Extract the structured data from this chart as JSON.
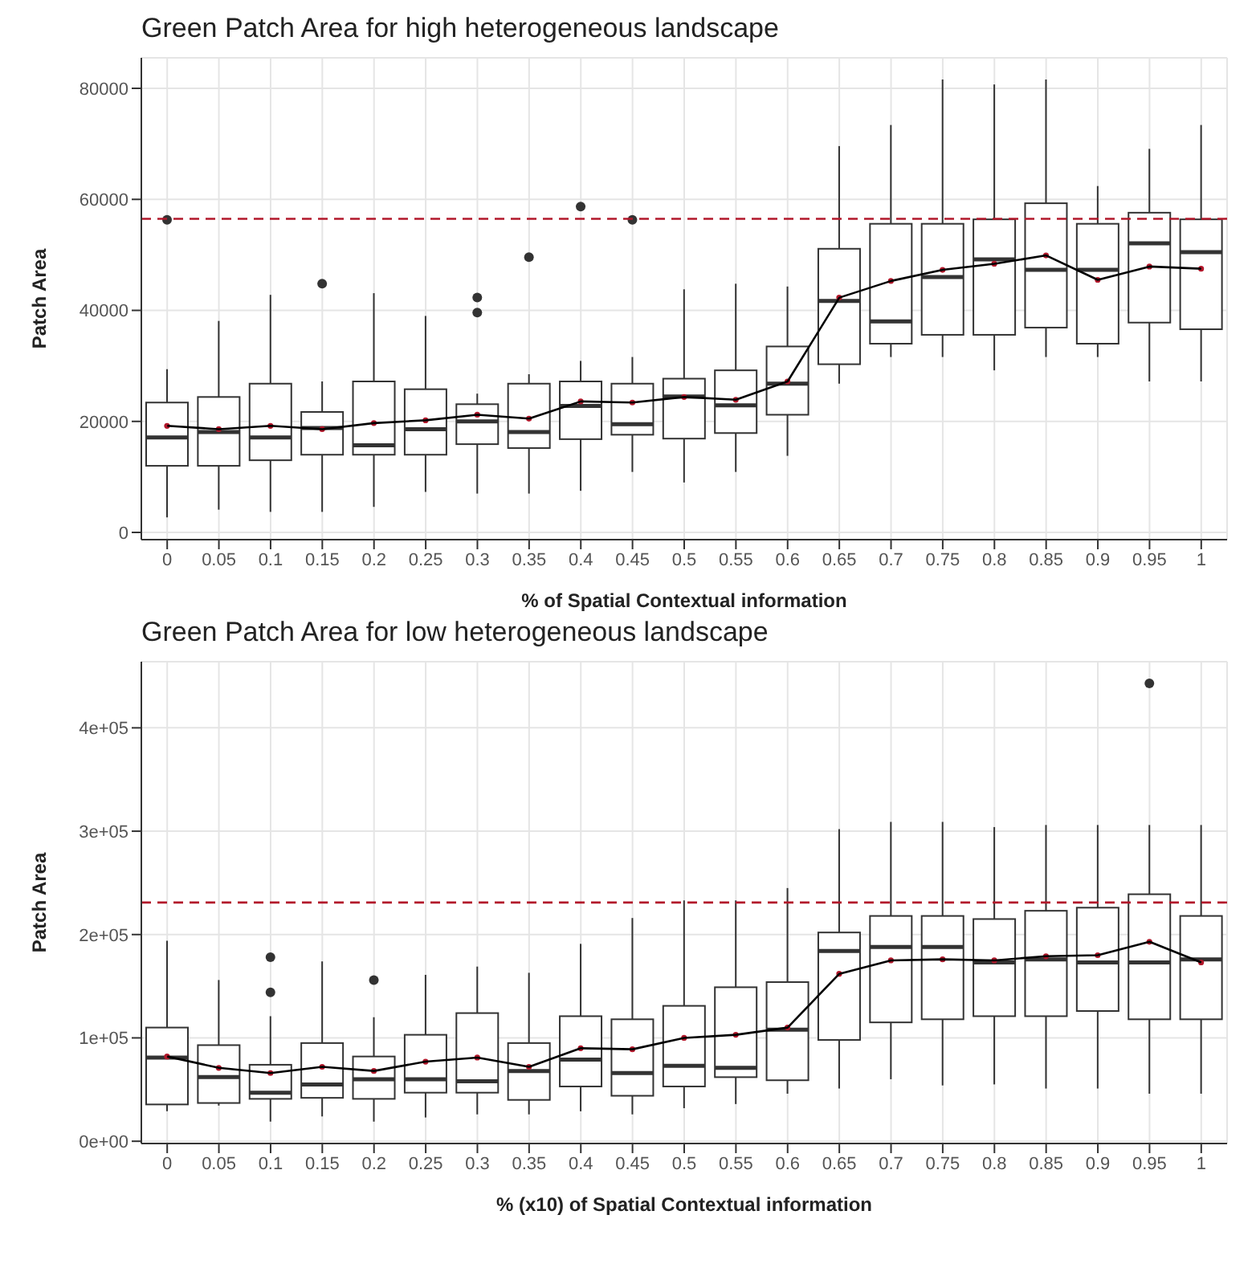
{
  "chart_data": [
    {
      "type": "box",
      "title": "Green Patch Area for high heterogeneous landscape",
      "xlabel": "% of Spatial Contextual information",
      "ylabel": "Patch Area",
      "categories": [
        "0",
        "0.05",
        "0.1",
        "0.15",
        "0.2",
        "0.25",
        "0.3",
        "0.35",
        "0.4",
        "0.45",
        "0.5",
        "0.55",
        "0.6",
        "0.65",
        "0.7",
        "0.75",
        "0.8",
        "0.85",
        "0.9",
        "0.95",
        "1"
      ],
      "ylim": [
        -1300,
        85500
      ],
      "yticks": [
        0,
        20000,
        40000,
        60000,
        80000
      ],
      "grid": true,
      "boxes": [
        {
          "low": 2700,
          "q1": 12000,
          "median": 17100,
          "q3": 23400,
          "high": 29400,
          "mean": 19200,
          "outliers": [
            56300
          ]
        },
        {
          "low": 4100,
          "q1": 12000,
          "median": 18100,
          "q3": 24400,
          "high": 38100,
          "mean": 18600
        },
        {
          "low": 3700,
          "q1": 13000,
          "median": 17100,
          "q3": 26800,
          "high": 42800,
          "mean": 19200
        },
        {
          "low": 3700,
          "q1": 14000,
          "median": 18800,
          "q3": 21700,
          "high": 27200,
          "mean": 18600,
          "outliers": [
            44800
          ]
        },
        {
          "low": 4600,
          "q1": 14000,
          "median": 15700,
          "q3": 27200,
          "high": 43100,
          "mean": 19700
        },
        {
          "low": 7300,
          "q1": 14000,
          "median": 18600,
          "q3": 25800,
          "high": 39000,
          "mean": 20200
        },
        {
          "low": 7000,
          "q1": 15900,
          "median": 20000,
          "q3": 23100,
          "high": 25000,
          "mean": 21200,
          "outliers": [
            42300,
            39600
          ]
        },
        {
          "low": 7000,
          "q1": 15200,
          "median": 18100,
          "q3": 26800,
          "high": 28500,
          "mean": 20500,
          "outliers": [
            49600
          ]
        },
        {
          "low": 7500,
          "q1": 16800,
          "median": 22800,
          "q3": 27200,
          "high": 30900,
          "mean": 23600,
          "outliers": [
            58700
          ]
        },
        {
          "low": 10900,
          "q1": 17600,
          "median": 19500,
          "q3": 26800,
          "high": 31600,
          "mean": 23400,
          "outliers": [
            56300
          ]
        },
        {
          "low": 9000,
          "q1": 16900,
          "median": 24500,
          "q3": 27700,
          "high": 43800,
          "mean": 24400
        },
        {
          "low": 10900,
          "q1": 17900,
          "median": 22900,
          "q3": 29200,
          "high": 44800,
          "mean": 23900
        },
        {
          "low": 13800,
          "q1": 21200,
          "median": 26800,
          "q3": 33500,
          "high": 44300,
          "mean": 27200
        },
        {
          "low": 26800,
          "q1": 30300,
          "median": 41700,
          "q3": 51100,
          "high": 69600,
          "mean": 42300
        },
        {
          "low": 31600,
          "q1": 34000,
          "median": 38000,
          "q3": 55600,
          "high": 73400,
          "mean": 45300
        },
        {
          "low": 31600,
          "q1": 35600,
          "median": 46000,
          "q3": 55600,
          "high": 81600,
          "mean": 47300
        },
        {
          "low": 29200,
          "q1": 35600,
          "median": 49200,
          "q3": 56400,
          "high": 80700,
          "mean": 48400
        },
        {
          "low": 31600,
          "q1": 36900,
          "median": 47300,
          "q3": 59300,
          "high": 81600,
          "mean": 49900
        },
        {
          "low": 31600,
          "q1": 34000,
          "median": 47300,
          "q3": 55600,
          "high": 62400,
          "mean": 45500
        },
        {
          "low": 27200,
          "q1": 37800,
          "median": 52100,
          "q3": 57600,
          "high": 69100,
          "mean": 47900
        },
        {
          "low": 27200,
          "q1": 36600,
          "median": 50500,
          "q3": 56400,
          "high": 73400,
          "mean": 47500
        }
      ],
      "series": [
        {
          "type": "line",
          "color": "#000000",
          "values": [
            19200,
            18600,
            19200,
            18600,
            19700,
            20200,
            21200,
            20500,
            23600,
            23400,
            24400,
            23900,
            27200,
            42300,
            45300,
            47300,
            48400,
            49900,
            45500,
            47900,
            47500
          ]
        }
      ],
      "marker": "none",
      "line_style": "solid",
      "ref_lines": [
        {
          "axis": "y",
          "value": 56500,
          "color": "#b2182b",
          "line_style": "dashed"
        }
      ]
    },
    {
      "type": "box",
      "title": "Green Patch Area for low heterogeneous landscape",
      "xlabel": "% (x10) of Spatial Contextual information",
      "ylabel": "Patch Area",
      "categories": [
        "0",
        "0.05",
        "0.1",
        "0.15",
        "0.2",
        "0.25",
        "0.3",
        "0.35",
        "0.4",
        "0.45",
        "0.5",
        "0.55",
        "0.6",
        "0.65",
        "0.7",
        "0.75",
        "0.8",
        "0.85",
        "0.9",
        "0.95",
        "1"
      ],
      "ylim": [
        -2200,
        464000
      ],
      "yticks": [
        {
          "value": 0,
          "label": "0e+00"
        },
        {
          "value": 100000,
          "label": "1e+05"
        },
        {
          "value": 200000,
          "label": "2e+05"
        },
        {
          "value": 300000,
          "label": "3e+05"
        },
        {
          "value": 400000,
          "label": "4e+05"
        }
      ],
      "grid": true,
      "boxes": [
        {
          "low": 29000,
          "q1": 35600,
          "median": 81000,
          "q3": 110000,
          "high": 194000,
          "mean": 82000
        },
        {
          "low": 34500,
          "q1": 37000,
          "median": 62000,
          "q3": 93000,
          "high": 156000,
          "mean": 71000
        },
        {
          "low": 19000,
          "q1": 41000,
          "median": 47000,
          "q3": 74000,
          "high": 121000,
          "mean": 66000,
          "outliers": [
            178000,
            144000
          ]
        },
        {
          "low": 24000,
          "q1": 42000,
          "median": 55000,
          "q3": 95000,
          "high": 174000,
          "mean": 72000
        },
        {
          "low": 19000,
          "q1": 41000,
          "median": 60000,
          "q3": 82000,
          "high": 120000,
          "mean": 68000,
          "outliers": [
            156000
          ]
        },
        {
          "low": 23000,
          "q1": 47000,
          "median": 60000,
          "q3": 103000,
          "high": 161000,
          "mean": 77000
        },
        {
          "low": 26000,
          "q1": 47000,
          "median": 58000,
          "q3": 124000,
          "high": 169000,
          "mean": 81000
        },
        {
          "low": 26000,
          "q1": 40000,
          "median": 68000,
          "q3": 95000,
          "high": 163000,
          "mean": 72000
        },
        {
          "low": 29000,
          "q1": 53000,
          "median": 79000,
          "q3": 121000,
          "high": 191000,
          "mean": 90000
        },
        {
          "low": 26000,
          "q1": 44000,
          "median": 66000,
          "q3": 118000,
          "high": 216000,
          "mean": 89000
        },
        {
          "low": 32000,
          "q1": 53000,
          "median": 73000,
          "q3": 131000,
          "high": 233000,
          "mean": 100000
        },
        {
          "low": 36000,
          "q1": 62000,
          "median": 71000,
          "q3": 149000,
          "high": 233000,
          "mean": 103000
        },
        {
          "low": 46000,
          "q1": 59000,
          "median": 108000,
          "q3": 154000,
          "high": 245000,
          "mean": 110000
        },
        {
          "low": 51000,
          "q1": 98000,
          "median": 184000,
          "q3": 202000,
          "high": 302000,
          "mean": 162000
        },
        {
          "low": 60000,
          "q1": 115000,
          "median": 188000,
          "q3": 218000,
          "high": 309000,
          "mean": 175000
        },
        {
          "low": 54000,
          "q1": 118000,
          "median": 188000,
          "q3": 218000,
          "high": 309000,
          "mean": 176000
        },
        {
          "low": 55000,
          "q1": 121000,
          "median": 173000,
          "q3": 215000,
          "high": 304000,
          "mean": 175000
        },
        {
          "low": 51000,
          "q1": 121000,
          "median": 176000,
          "q3": 223000,
          "high": 306000,
          "mean": 179000
        },
        {
          "low": 51000,
          "q1": 126000,
          "median": 173000,
          "q3": 226000,
          "high": 306000,
          "mean": 180000
        },
        {
          "low": 46000,
          "q1": 118000,
          "median": 173000,
          "q3": 239000,
          "high": 306000,
          "mean": 193000,
          "outliers": [
            443000
          ]
        },
        {
          "low": 46000,
          "q1": 118000,
          "median": 176000,
          "q3": 218000,
          "high": 306000,
          "mean": 173000
        }
      ],
      "series": [
        {
          "type": "line",
          "color": "#000000",
          "values": [
            82000,
            71000,
            66000,
            72000,
            68000,
            77000,
            81000,
            72000,
            90000,
            89000,
            100000,
            103000,
            110000,
            162000,
            175000,
            176000,
            175000,
            179000,
            180000,
            193000,
            173000
          ]
        }
      ],
      "marker": "none",
      "line_style": "solid",
      "ref_lines": [
        {
          "axis": "y",
          "value": 231000,
          "color": "#b2182b",
          "line_style": "dashed"
        }
      ]
    }
  ]
}
